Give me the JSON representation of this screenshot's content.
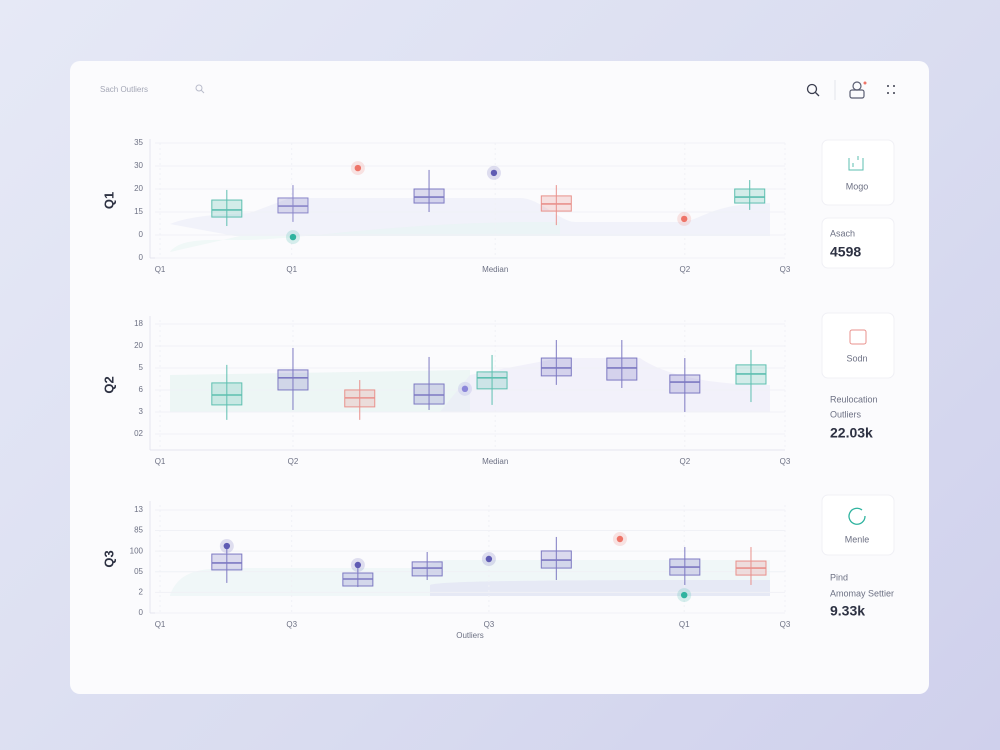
{
  "header": {
    "search_placeholder": "Sach Outliers"
  },
  "chart_data": [
    {
      "type": "box",
      "label": "Q1",
      "xlim": [
        0,
        100
      ],
      "ylim": [
        0,
        5
      ],
      "xticks": [
        {
          "value": 0.8,
          "label": "Q1"
        },
        {
          "value": 21.7,
          "label": "Q1"
        },
        {
          "value": 54,
          "label": "Median"
        },
        {
          "value": 84.1,
          "label": "Q2"
        },
        {
          "value": 100,
          "label": "Q3"
        }
      ],
      "yticks": [
        {
          "value": 5,
          "label": "35"
        },
        {
          "value": 4,
          "label": "30"
        },
        {
          "value": 3,
          "label": "20"
        },
        {
          "value": 2,
          "label": "15"
        },
        {
          "value": 1,
          "label": "0"
        },
        {
          "value": 0,
          "label": "0"
        }
      ],
      "grid": true,
      "boxes": [
        {
          "x": 11.4,
          "whisker_low": 1.39,
          "q1": 1.78,
          "median": 2.09,
          "q3": 2.52,
          "whisker_high": 2.96,
          "color": "#5dbfb0"
        },
        {
          "x": 21.9,
          "whisker_low": 1.57,
          "q1": 1.96,
          "median": 2.26,
          "q3": 2.61,
          "whisker_high": 3.17,
          "color": "#8a86c9"
        },
        {
          "x": 43.5,
          "whisker_low": 2.0,
          "q1": 2.39,
          "median": 2.65,
          "q3": 3.0,
          "whisker_high": 3.83,
          "color": "#7d79c2"
        },
        {
          "x": 63.7,
          "whisker_low": 1.43,
          "q1": 2.04,
          "median": 2.35,
          "q3": 2.7,
          "whisker_high": 3.17,
          "color": "#e9918c"
        },
        {
          "x": 94.4,
          "whisker_low": 2.09,
          "q1": 2.39,
          "median": 2.65,
          "q3": 3.0,
          "whisker_high": 3.39,
          "color": "#5dbfb0"
        }
      ],
      "outliers": [
        {
          "x": 32.2,
          "y": 3.91,
          "color": "#ee7468"
        },
        {
          "x": 53.8,
          "y": 3.7,
          "color": "#5f5bb3"
        },
        {
          "x": 21.9,
          "y": 0.91,
          "color": "#2fb39f"
        },
        {
          "x": 84,
          "y": 1.7,
          "color": "#ee7468"
        }
      ]
    },
    {
      "type": "box",
      "label": "Q2",
      "xlim": [
        0,
        100
      ],
      "ylim": [
        -0.73,
        5.18
      ],
      "xticks": [
        {
          "value": 0.8,
          "label": "Q1"
        },
        {
          "value": 21.9,
          "label": "Q2"
        },
        {
          "value": 54,
          "label": "Median"
        },
        {
          "value": 84.1,
          "label": "Q2"
        },
        {
          "value": 100,
          "label": "Q3"
        }
      ],
      "yticks": [
        {
          "value": 5,
          "label": "18"
        },
        {
          "value": 4,
          "label": "20"
        },
        {
          "value": 3,
          "label": "5"
        },
        {
          "value": 2,
          "label": "6"
        },
        {
          "value": 1,
          "label": "3"
        },
        {
          "value": 0,
          "label": "02"
        }
      ],
      "grid": true,
      "boxes": [
        {
          "x": 11.4,
          "whisker_low": 0.64,
          "q1": 1.32,
          "median": 1.77,
          "q3": 2.32,
          "whisker_high": 3.14,
          "color": "#5dbfb0"
        },
        {
          "x": 21.9,
          "whisker_low": 1.09,
          "q1": 2.0,
          "median": 2.55,
          "q3": 2.91,
          "whisker_high": 3.91,
          "color": "#7d79c2"
        },
        {
          "x": 32.5,
          "whisker_low": 0.64,
          "q1": 1.23,
          "median": 1.64,
          "q3": 2.0,
          "whisker_high": 2.45,
          "color": "#e9918c"
        },
        {
          "x": 43.5,
          "whisker_low": 1.09,
          "q1": 1.36,
          "median": 1.77,
          "q3": 2.27,
          "whisker_high": 3.5,
          "color": "#7d79c2"
        },
        {
          "x": 53.5,
          "whisker_low": 1.32,
          "q1": 2.05,
          "median": 2.55,
          "q3": 2.82,
          "whisker_high": 3.59,
          "color": "#5dbfb0"
        },
        {
          "x": 63.7,
          "whisker_low": 2.23,
          "q1": 2.64,
          "median": 3.0,
          "q3": 3.45,
          "whisker_high": 4.27,
          "color": "#7d79c2"
        },
        {
          "x": 74.1,
          "whisker_low": 2.09,
          "q1": 2.45,
          "median": 3.0,
          "q3": 3.45,
          "whisker_high": 4.27,
          "color": "#7d79c2"
        },
        {
          "x": 84.1,
          "whisker_low": 1.0,
          "q1": 1.86,
          "median": 2.36,
          "q3": 2.68,
          "whisker_high": 3.45,
          "color": "#7d79c2"
        },
        {
          "x": 94.6,
          "whisker_low": 1.45,
          "q1": 2.27,
          "median": 2.73,
          "q3": 3.14,
          "whisker_high": 3.82,
          "color": "#5dbfb0"
        }
      ],
      "outliers": [
        {
          "x": 49.2,
          "y": 2.05,
          "color": "#8a86d9"
        }
      ]
    },
    {
      "type": "box",
      "label": "Q3",
      "x_label": "Outliers",
      "xlim": [
        0,
        100
      ],
      "ylim": [
        0,
        5.24
      ],
      "xticks": [
        {
          "value": 0.8,
          "label": "Q1"
        },
        {
          "value": 21.7,
          "label": "Q3"
        },
        {
          "value": 53.0,
          "label": "Q3"
        },
        {
          "value": 84,
          "label": "Q1"
        },
        {
          "value": 100,
          "label": "Q3"
        }
      ],
      "yticks": [
        {
          "value": 5,
          "label": "13"
        },
        {
          "value": 4,
          "label": "85"
        },
        {
          "value": 3,
          "label": "100"
        },
        {
          "value": 2,
          "label": "05"
        },
        {
          "value": 1,
          "label": "2"
        },
        {
          "value": 0,
          "label": "0"
        }
      ],
      "grid": true,
      "boxes": [
        {
          "x": 11.4,
          "whisker_low": 1.46,
          "q1": 2.09,
          "median": 2.43,
          "q3": 2.86,
          "whisker_high": 3.16,
          "color": "#7d79c2"
        },
        {
          "x": 32.2,
          "whisker_low": 1.26,
          "q1": 1.31,
          "median": 1.65,
          "q3": 1.94,
          "whisker_high": 2.18,
          "color": "#7d79c2"
        },
        {
          "x": 43.2,
          "whisker_low": 1.6,
          "q1": 1.8,
          "median": 2.18,
          "q3": 2.48,
          "whisker_high": 2.96,
          "color": "#7d79c2"
        },
        {
          "x": 63.7,
          "whisker_low": 1.6,
          "q1": 2.18,
          "median": 2.57,
          "q3": 3.01,
          "whisker_high": 3.69,
          "color": "#7d79c2"
        },
        {
          "x": 84.1,
          "whisker_low": 1.36,
          "q1": 1.84,
          "median": 2.23,
          "q3": 2.62,
          "whisker_high": 3.2,
          "color": "#7d79c2"
        },
        {
          "x": 94.6,
          "whisker_low": 1.36,
          "q1": 1.84,
          "median": 2.18,
          "q3": 2.52,
          "whisker_high": 3.2,
          "color": "#e9918c"
        }
      ],
      "outliers": [
        {
          "x": 11.4,
          "y": 3.25,
          "color": "#5f5bb3"
        },
        {
          "x": 32.2,
          "y": 2.33,
          "color": "#5f5bb3"
        },
        {
          "x": 53.0,
          "y": 2.62,
          "color": "#5f5bb3"
        },
        {
          "x": 73.8,
          "y": 3.59,
          "color": "#ee7468"
        },
        {
          "x": 84,
          "y": 0.87,
          "color": "#2fb39f"
        }
      ]
    }
  ],
  "side_cards": [
    {
      "title": "Mogo",
      "label": "Asach",
      "value": "4598"
    },
    {
      "title": "Sodn",
      "label": "Reulocation",
      "label2": "Outliers",
      "value": "22.03k"
    },
    {
      "title": "Menle",
      "label": "Pind",
      "label2": "Amomay Settier",
      "value": "9.33k"
    }
  ]
}
